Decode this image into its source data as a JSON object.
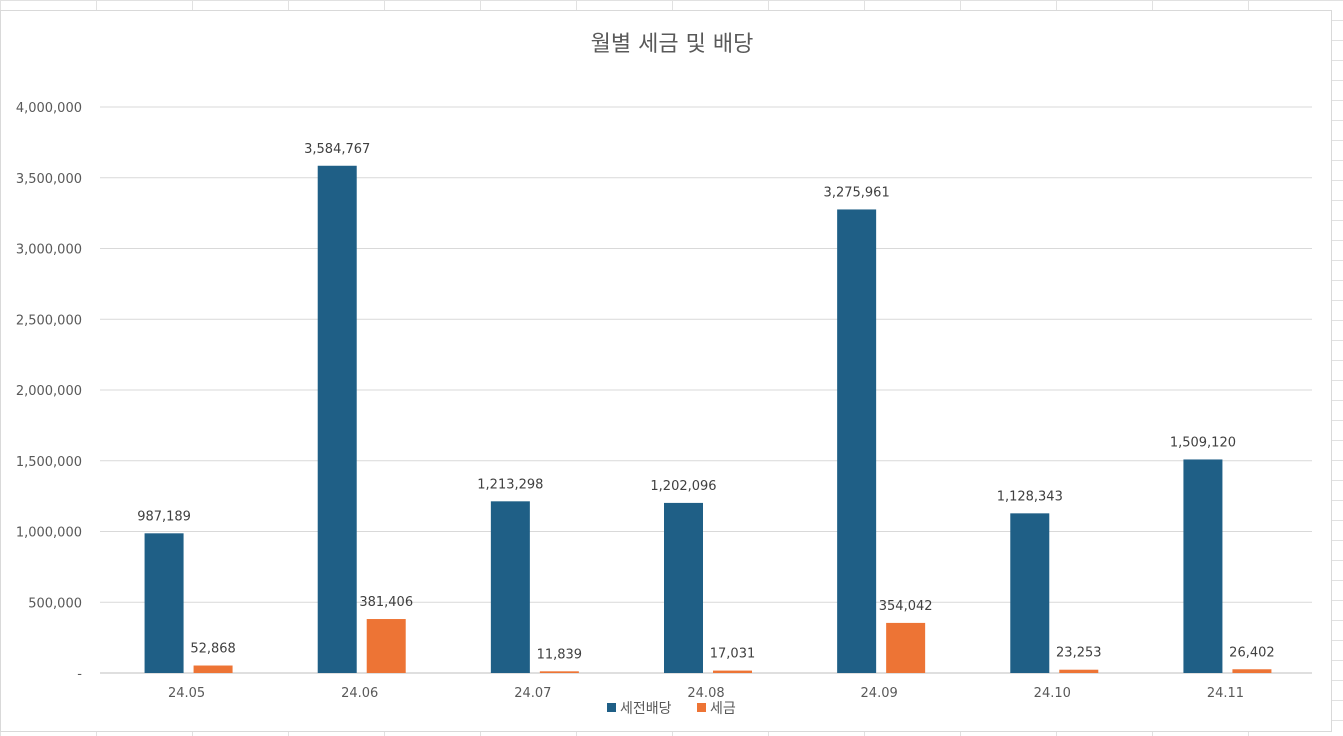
{
  "chart_data": {
    "type": "bar",
    "title": "월별 세금 및 배당",
    "categories": [
      "24.05",
      "24.06",
      "24.07",
      "24.08",
      "24.09",
      "24.10",
      "24.11"
    ],
    "series": [
      {
        "name": "세전배당",
        "color": "#1f5f86",
        "values": [
          987189,
          3584767,
          1213298,
          1202096,
          3275961,
          1128343,
          1509120
        ],
        "labels": [
          "987,189",
          "3,584,767",
          "1,213,298",
          "1,202,096",
          "3,275,961",
          "1,128,343",
          "1,509,120"
        ]
      },
      {
        "name": "세금",
        "color": "#ed7435",
        "values": [
          52868,
          381406,
          11839,
          17031,
          354042,
          23253,
          26402
        ],
        "labels": [
          "52,868",
          "381,406",
          "11,839",
          "17,031",
          "354,042",
          "23,253",
          "26,402"
        ]
      }
    ],
    "ylim": [
      0,
      4000000
    ],
    "yticks": [
      0,
      500000,
      1000000,
      1500000,
      2000000,
      2500000,
      3000000,
      3500000,
      4000000
    ],
    "ytick_labels": [
      "-",
      "500,000",
      "1,000,000",
      "1,500,000",
      "2,000,000",
      "2,500,000",
      "3,000,000",
      "3,500,000",
      "4,000,000"
    ],
    "grid": true,
    "legend": "bottom"
  }
}
